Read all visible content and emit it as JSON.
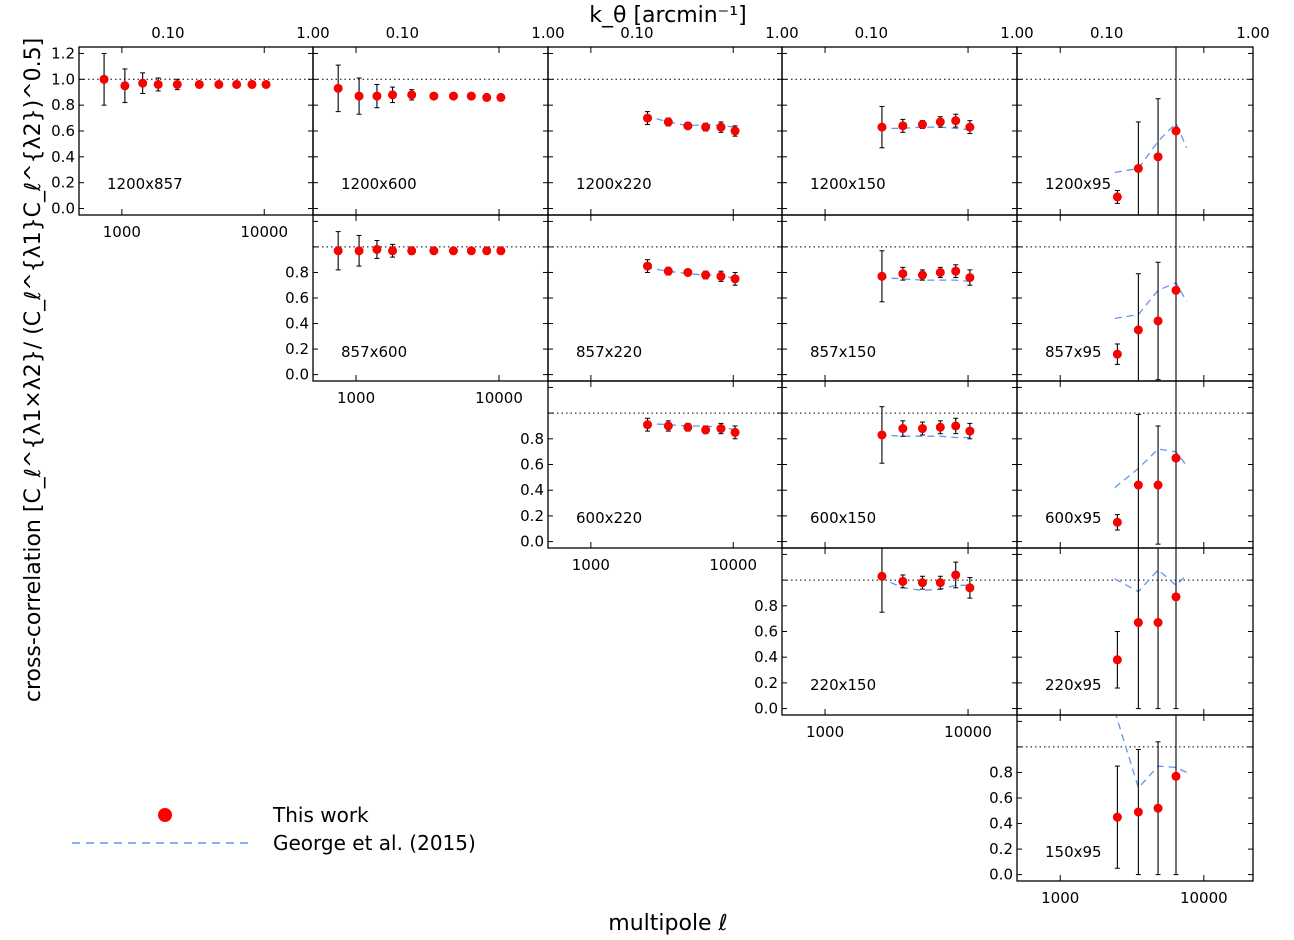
{
  "figure": {
    "y_axis_title": "cross-correlation [C_ℓ^{λ1×λ2}/ (C_ℓ^{λ1}C_ℓ^{λ2})^0.5]",
    "x_axis_title": "multipole ℓ",
    "top_axis_title": "k_θ [arcmin⁻¹]"
  },
  "legend": {
    "this_work": "This work",
    "george": "George et al. (2015)"
  },
  "colors": {
    "points": "#e00000",
    "model": "#6495ed",
    "errorbar": "#000000"
  },
  "chart_data": {
    "type": "scatter",
    "title": "",
    "xlabel": "multipole ℓ",
    "ylabel": "cross-correlation [C_ℓ^{λ1×λ2}/ (C_ℓ^{λ1}C_ℓ^{λ2})^0.5]",
    "top_xlabel": "k_θ [arcmin⁻¹]",
    "x_scale": "log",
    "xlim": [
      500,
      22000
    ],
    "ylim": [
      -0.05,
      1.25
    ],
    "top_ticks": [
      "0.10",
      "1.00"
    ],
    "x_ticks": [
      1000,
      10000
    ],
    "y_ticks": [
      0.0,
      0.2,
      0.4,
      0.6,
      0.8,
      1.0,
      1.2
    ],
    "reference_line": 1.0,
    "panels": [
      {
        "label": "1200x857",
        "row": 0,
        "col": 0,
        "x": [
          750,
          1050,
          1400,
          1800,
          2450,
          3500,
          4800,
          6400,
          8200,
          10300
        ],
        "y": [
          1.0,
          0.95,
          0.97,
          0.96,
          0.96,
          0.96,
          0.96,
          0.96,
          0.96,
          0.96
        ],
        "err": [
          0.2,
          0.13,
          0.08,
          0.05,
          0.04,
          0.02,
          0.02,
          0.02,
          0.02,
          0.02
        ],
        "model": null
      },
      {
        "label": "1200x600",
        "row": 0,
        "col": 1,
        "x": [
          750,
          1050,
          1400,
          1800,
          2450,
          3500,
          4800,
          6400,
          8200,
          10300
        ],
        "y": [
          0.93,
          0.87,
          0.87,
          0.88,
          0.88,
          0.87,
          0.87,
          0.87,
          0.86,
          0.86
        ],
        "err": [
          0.18,
          0.14,
          0.09,
          0.06,
          0.04,
          0.02,
          0.02,
          0.02,
          0.02,
          0.02
        ],
        "model": null
      },
      {
        "label": "1200x220",
        "row": 0,
        "col": 2,
        "x": [
          2500,
          3500,
          4800,
          6400,
          8200,
          10300
        ],
        "y": [
          0.7,
          0.67,
          0.64,
          0.63,
          0.63,
          0.6
        ],
        "err": [
          0.05,
          0.03,
          0.02,
          0.03,
          0.04,
          0.04
        ],
        "model": {
          "x": [
            2400,
            3500,
            4800,
            6400,
            8200,
            10300
          ],
          "y": [
            0.72,
            0.67,
            0.64,
            0.65,
            0.64,
            0.63
          ]
        }
      },
      {
        "label": "1200x150",
        "row": 0,
        "col": 3,
        "x": [
          2500,
          3500,
          4800,
          6400,
          8200,
          10300
        ],
        "y": [
          0.63,
          0.64,
          0.65,
          0.67,
          0.68,
          0.63
        ],
        "err": [
          0.16,
          0.05,
          0.03,
          0.04,
          0.05,
          0.05
        ],
        "model": {
          "x": [
            2400,
            3500,
            4800,
            6400,
            8200,
            10300
          ],
          "y": [
            0.62,
            0.62,
            0.63,
            0.63,
            0.62,
            0.61
          ]
        }
      },
      {
        "label": "1200x95",
        "row": 0,
        "col": 4,
        "x": [
          2500,
          3500,
          4800,
          6400
        ],
        "y": [
          0.09,
          0.31,
          0.4,
          0.6
        ],
        "err": [
          0.05,
          0.36,
          0.45,
          0.9
        ],
        "model": {
          "x": [
            2400,
            3500,
            4800,
            6400,
            7600
          ],
          "y": [
            0.28,
            0.31,
            0.52,
            0.66,
            0.47
          ]
        }
      },
      {
        "label": "857x600",
        "row": 1,
        "col": 1,
        "x": [
          750,
          1050,
          1400,
          1800,
          2450,
          3500,
          4800,
          6400,
          8200,
          10300
        ],
        "y": [
          0.97,
          0.97,
          0.98,
          0.97,
          0.97,
          0.97,
          0.97,
          0.97,
          0.97,
          0.97
        ],
        "err": [
          0.15,
          0.12,
          0.07,
          0.05,
          0.03,
          0.02,
          0.02,
          0.02,
          0.02,
          0.02
        ],
        "model": null
      },
      {
        "label": "857x220",
        "row": 1,
        "col": 2,
        "x": [
          2500,
          3500,
          4800,
          6400,
          8200,
          10300
        ],
        "y": [
          0.85,
          0.81,
          0.8,
          0.78,
          0.77,
          0.75
        ],
        "err": [
          0.05,
          0.03,
          0.02,
          0.03,
          0.04,
          0.05
        ],
        "model": {
          "x": [
            2400,
            3500,
            4800,
            6400,
            8200,
            10300
          ],
          "y": [
            0.84,
            0.81,
            0.79,
            0.78,
            0.78,
            0.75
          ]
        }
      },
      {
        "label": "857x150",
        "row": 1,
        "col": 3,
        "x": [
          2500,
          3500,
          4800,
          6400,
          8200,
          10300
        ],
        "y": [
          0.77,
          0.79,
          0.78,
          0.8,
          0.81,
          0.76
        ],
        "err": [
          0.2,
          0.05,
          0.04,
          0.04,
          0.05,
          0.06
        ],
        "model": {
          "x": [
            2400,
            3500,
            4800,
            6400,
            8200,
            10300
          ],
          "y": [
            0.76,
            0.75,
            0.74,
            0.74,
            0.74,
            0.73
          ]
        }
      },
      {
        "label": "857x95",
        "row": 1,
        "col": 4,
        "x": [
          2500,
          3500,
          4800,
          6400
        ],
        "y": [
          0.16,
          0.35,
          0.42,
          0.66
        ],
        "err": [
          0.08,
          0.44,
          0.46,
          0.9
        ],
        "model": {
          "x": [
            2400,
            3500,
            4800,
            6400,
            7600
          ],
          "y": [
            0.44,
            0.47,
            0.66,
            0.72,
            0.57
          ]
        }
      },
      {
        "label": "600x220",
        "row": 2,
        "col": 2,
        "x": [
          2500,
          3500,
          4800,
          6400,
          8200,
          10300
        ],
        "y": [
          0.91,
          0.9,
          0.89,
          0.87,
          0.88,
          0.85
        ],
        "err": [
          0.05,
          0.04,
          0.03,
          0.03,
          0.04,
          0.05
        ],
        "model": {
          "x": [
            2400,
            3500,
            4800,
            6400,
            8200,
            10300
          ],
          "y": [
            0.92,
            0.91,
            0.9,
            0.9,
            0.89,
            0.87
          ]
        }
      },
      {
        "label": "600x150",
        "row": 2,
        "col": 3,
        "x": [
          2500,
          3500,
          4800,
          6400,
          8200,
          10300
        ],
        "y": [
          0.83,
          0.88,
          0.88,
          0.89,
          0.9,
          0.86
        ],
        "err": [
          0.22,
          0.06,
          0.05,
          0.05,
          0.06,
          0.06
        ],
        "model": {
          "x": [
            2400,
            3500,
            4800,
            6400,
            8200,
            10300
          ],
          "y": [
            0.83,
            0.82,
            0.82,
            0.82,
            0.81,
            0.81
          ]
        }
      },
      {
        "label": "600x95",
        "row": 2,
        "col": 4,
        "x": [
          2500,
          3500,
          4800,
          6400
        ],
        "y": [
          0.15,
          0.44,
          0.44,
          0.65
        ],
        "err": [
          0.06,
          0.55,
          0.46,
          0.9
        ],
        "model": {
          "x": [
            2400,
            3500,
            4800,
            6400,
            7600
          ],
          "y": [
            0.42,
            0.57,
            0.72,
            0.7,
            0.59
          ]
        }
      },
      {
        "label": "220x150",
        "row": 3,
        "col": 3,
        "x": [
          2500,
          3500,
          4800,
          6400,
          8200,
          10300
        ],
        "y": [
          1.03,
          0.99,
          0.98,
          0.98,
          1.04,
          0.94
        ],
        "err": [
          0.28,
          0.05,
          0.05,
          0.05,
          0.1,
          0.08
        ],
        "model": {
          "x": [
            2400,
            3500,
            4800,
            6400,
            8200,
            10300
          ],
          "y": [
            1.02,
            0.94,
            0.92,
            0.93,
            0.96,
            0.96
          ]
        }
      },
      {
        "label": "220x95",
        "row": 3,
        "col": 4,
        "x": [
          2500,
          3500,
          4800,
          6400
        ],
        "y": [
          0.38,
          0.67,
          0.67,
          0.87
        ],
        "err": [
          0.22,
          0.67,
          0.67,
          0.87
        ],
        "model": {
          "x": [
            2400,
            3500,
            4800,
            6400,
            7600
          ],
          "y": [
            1.01,
            0.91,
            1.08,
            0.96,
            1.04
          ]
        }
      },
      {
        "label": "150x95",
        "row": 4,
        "col": 4,
        "x": [
          2500,
          3500,
          4800,
          6400
        ],
        "y": [
          0.45,
          0.49,
          0.52,
          0.77
        ],
        "err": [
          0.4,
          0.49,
          0.52,
          0.77
        ],
        "model": {
          "x": [
            2400,
            3500,
            4800,
            6400,
            7600
          ],
          "y": [
            1.28,
            0.68,
            0.85,
            0.84,
            0.8
          ]
        }
      }
    ]
  }
}
